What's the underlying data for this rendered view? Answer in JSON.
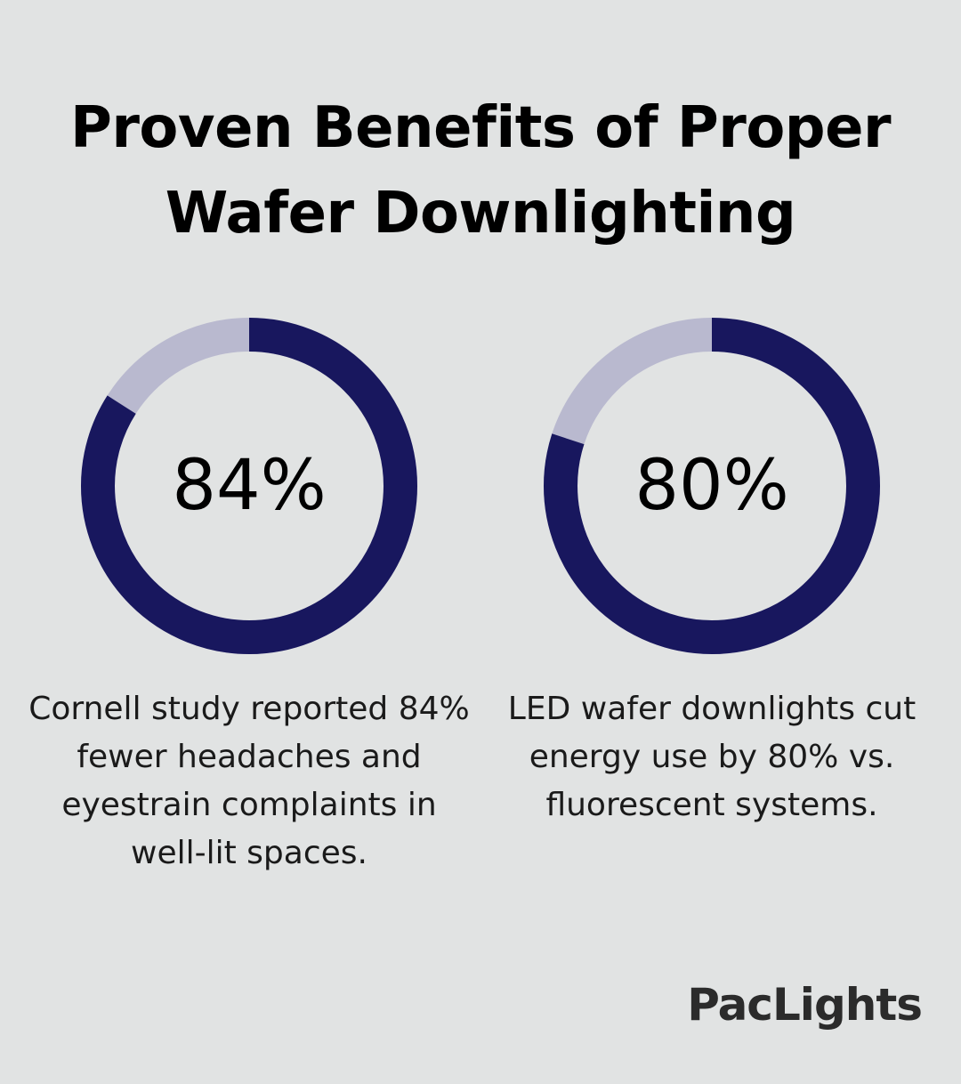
{
  "page": {
    "background": "#e1e3e3",
    "title_line1": "Proven Benefits of Proper",
    "title_line2": "Wafer Downlighting"
  },
  "chart_data": [
    {
      "type": "pie",
      "variant": "donut",
      "value": 84,
      "max": 100,
      "label": "84%",
      "caption": "Cornell study reported 84% fewer headaches and eyestrain complaints in well-lit spaces.",
      "colors": {
        "filled": "#18175e",
        "remainder": "#b9b9cf"
      }
    },
    {
      "type": "pie",
      "variant": "donut",
      "value": 80,
      "max": 100,
      "label": "80%",
      "caption": "LED wafer downlights cut energy use by 80% vs. fluorescent systems.",
      "colors": {
        "filled": "#18175e",
        "remainder": "#b9b9cf"
      }
    }
  ],
  "brand": {
    "name": "PacLights",
    "color": "#2b2b2b"
  }
}
